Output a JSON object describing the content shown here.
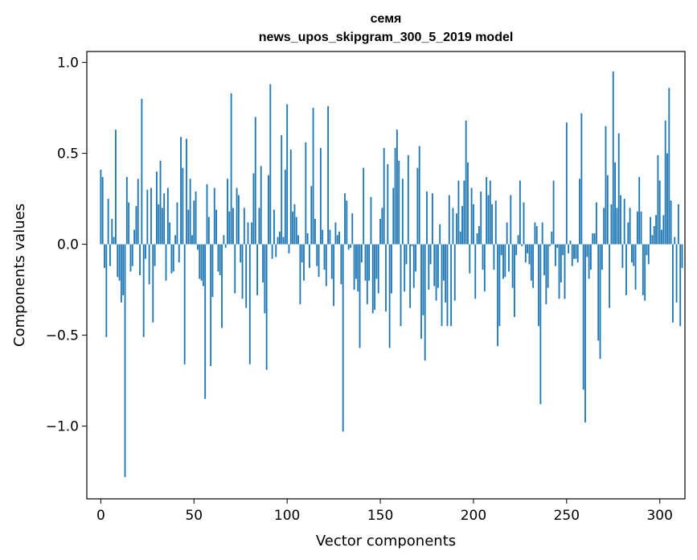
{
  "chart_data": {
    "type": "bar",
    "title": "семя",
    "subtitle": "news_upos_skipgram_300_5_2019 model",
    "xlabel": "Vector components",
    "ylabel": "Components values",
    "xlim": [
      -7.5,
      313.5
    ],
    "ylim": [
      -1.4,
      1.06
    ],
    "x_ticks": [
      {
        "value": 0,
        "label": "0"
      },
      {
        "value": 50,
        "label": "50"
      },
      {
        "value": 100,
        "label": "100"
      },
      {
        "value": 150,
        "label": "150"
      },
      {
        "value": 200,
        "label": "200"
      },
      {
        "value": 250,
        "label": "250"
      },
      {
        "value": 300,
        "label": "300"
      }
    ],
    "y_ticks": [
      {
        "value": 1.0,
        "label": "1.0"
      },
      {
        "value": 0.5,
        "label": "0.5"
      },
      {
        "value": 0.0,
        "label": "0.0"
      },
      {
        "value": -0.5,
        "label": "−0.5"
      },
      {
        "value": -1.0,
        "label": "−1.0"
      }
    ],
    "grid": false,
    "bar_color": "#1f77b4",
    "values": [
      0.41,
      0.37,
      -0.13,
      -0.51,
      0.25,
      -0.12,
      0.14,
      0.04,
      0.63,
      -0.18,
      -0.2,
      -0.32,
      -0.28,
      -1.28,
      0.37,
      0.23,
      -0.15,
      -0.12,
      0.08,
      0.21,
      0.36,
      -0.17,
      0.8,
      -0.51,
      -0.08,
      0.3,
      -0.22,
      0.31,
      -0.43,
      -0.12,
      0.4,
      0.22,
      0.46,
      0.2,
      0.28,
      -0.2,
      0.31,
      0.12,
      -0.16,
      -0.15,
      0.05,
      0.23,
      -0.1,
      0.59,
      0.42,
      -0.66,
      0.58,
      0.19,
      0.36,
      0.05,
      0.24,
      0.29,
      -0.03,
      -0.19,
      -0.2,
      -0.23,
      -0.85,
      0.33,
      0.15,
      -0.67,
      -0.29,
      0.31,
      0.19,
      -0.15,
      -0.17,
      -0.46,
      0.05,
      -0.02,
      0.36,
      0.18,
      0.83,
      0.2,
      -0.27,
      0.31,
      0.27,
      -0.1,
      -0.3,
      0.2,
      -0.35,
      0.12,
      -0.66,
      0.12,
      0.39,
      0.7,
      -0.28,
      0.2,
      0.43,
      -0.21,
      -0.38,
      -0.69,
      0.38,
      0.88,
      -0.08,
      0.19,
      -0.07,
      0.04,
      0.07,
      0.6,
      0.04,
      0.41,
      0.77,
      -0.05,
      0.52,
      0.18,
      0.22,
      0.15,
      0.05,
      -0.33,
      -0.1,
      -0.2,
      0.56,
      0.06,
      -0.13,
      0.32,
      0.75,
      0.14,
      -0.12,
      -0.18,
      0.53,
      0.08,
      -0.14,
      -0.23,
      0.76,
      0.08,
      -0.19,
      -0.34,
      0.12,
      0.05,
      0.07,
      -0.22,
      -1.03,
      0.28,
      0.24,
      -0.03,
      -0.02,
      0.17,
      -0.25,
      -0.19,
      -0.26,
      -0.57,
      -0.1,
      0.42,
      -0.2,
      -0.33,
      -0.2,
      0.26,
      -0.38,
      -0.36,
      -0.19,
      -0.27,
      0.14,
      0.2,
      0.53,
      -0.37,
      0.44,
      -0.57,
      -0.27,
      0.31,
      0.53,
      0.63,
      0.46,
      -0.45,
      0.36,
      -0.26,
      -0.11,
      0.49,
      -0.35,
      -0.01,
      -0.24,
      -0.15,
      0.42,
      0.54,
      -0.52,
      -0.39,
      -0.64,
      0.29,
      -0.25,
      -0.11,
      0.28,
      -0.23,
      -0.31,
      -0.24,
      0.11,
      -0.45,
      -0.2,
      -0.32,
      -0.45,
      0.27,
      -0.45,
      0.2,
      -0.31,
      0.17,
      0.35,
      0.07,
      0.21,
      0.35,
      0.68,
      0.45,
      -0.16,
      0.31,
      0.22,
      -0.3,
      0.06,
      0.1,
      0.29,
      -0.14,
      -0.26,
      0.37,
      0.27,
      0.35,
      0.22,
      -0.14,
      0.24,
      -0.56,
      -0.45,
      -0.06,
      -0.19,
      -0.18,
      0.12,
      -0.15,
      0.27,
      -0.24,
      -0.4,
      -0.06,
      0.05,
      0.35,
      -0.01,
      0.23,
      -0.1,
      -0.05,
      -0.11,
      -0.2,
      -0.24,
      0.12,
      0.1,
      -0.45,
      -0.88,
      0.12,
      -0.17,
      -0.33,
      -0.24,
      -0.01,
      0.07,
      0.35,
      -0.12,
      -0.02,
      -0.3,
      -0.21,
      -0.06,
      -0.3,
      0.67,
      -0.05,
      0.02,
      -0.12,
      -0.08,
      -0.08,
      -0.1,
      0.36,
      0.72,
      -0.8,
      -0.98,
      -0.07,
      -0.19,
      -0.14,
      0.06,
      0.06,
      0.23,
      -0.53,
      -0.63,
      -0.14,
      0.2,
      0.65,
      0.38,
      -0.35,
      0.22,
      0.95,
      0.45,
      0.2,
      0.61,
      0.27,
      -0.13,
      0.25,
      -0.28,
      0.12,
      0.2,
      -0.1,
      -0.12,
      -0.25,
      0.18,
      0.37,
      0.18,
      -0.28,
      -0.31,
      -0.06,
      -0.11,
      0.15,
      0.05,
      0.1,
      0.16,
      0.49,
      0.35,
      0.08,
      0.16,
      0.68,
      0.5,
      0.86,
      0.24,
      -0.43,
      0.04,
      -0.32,
      0.22,
      -0.45,
      -0.13
    ]
  }
}
